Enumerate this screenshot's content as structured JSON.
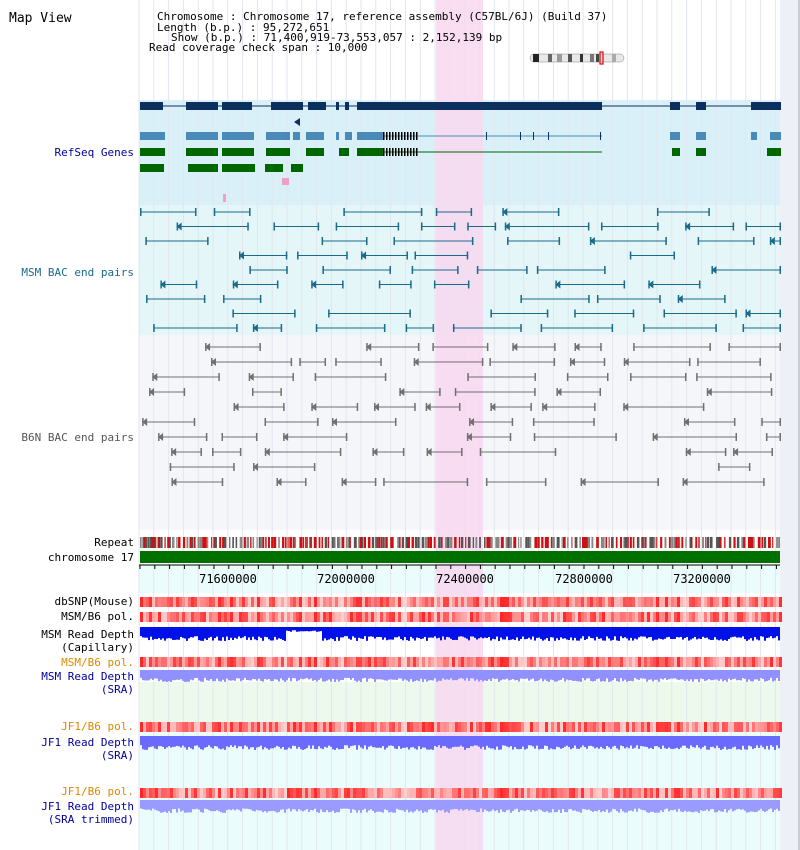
{
  "header": {
    "title": "Map View",
    "info_lines": [
      "Chromosome     : Chromosome 17, reference assembly (C57BL/6J) (Build 37)",
      "Length (b.p.) : 95,272,651",
      "Show (b.p.) : 71,400,919-73,553,057 : 2,152,139 bp",
      "Read coverage check span : 10,000"
    ]
  },
  "tracks": {
    "refseq": "RefSeq Genes",
    "msm_bac": "MSM BAC end pairs",
    "b6n_bac": "B6N BAC end pairs",
    "repeat": "Repeat",
    "chromosome": "chromosome 17",
    "dbsnp": "dbSNP(Mouse)",
    "msm_pol": "MSM/B6 pol.",
    "msm_depth_cap_1": "MSM Read Depth",
    "msm_depth_cap_2": "(Capillary)",
    "msm_pol_sra": "MSM/B6 pol.",
    "msm_depth_sra_1": "MSM Read Depth",
    "msm_depth_sra_2": "(SRA)",
    "jf1_pol": "JF1/B6 pol.",
    "jf1_depth_1": "JF1 Read Depth",
    "jf1_depth_2": "(SRA)",
    "jf1_pol_trim": "JF1/B6 pol.",
    "jf1_depth_trim_1": "JF1 Read Depth",
    "jf1_depth_trim_2": "(SRA trimmed)"
  },
  "axis": {
    "ticks": [
      "71600000",
      "72000000",
      "72400000",
      "72800000",
      "73200000"
    ]
  },
  "colors": {
    "highlight": "#f8d8f0",
    "gene_navy": "#0b3060",
    "gene_steel": "#4a8ab8",
    "gene_green": "#006600",
    "msm_bac": "#1a6a8a",
    "b6n_bac": "#707070",
    "label_navy": "#000099",
    "label_orange": "#e08800",
    "chromosome_bar": "#007000"
  }
}
